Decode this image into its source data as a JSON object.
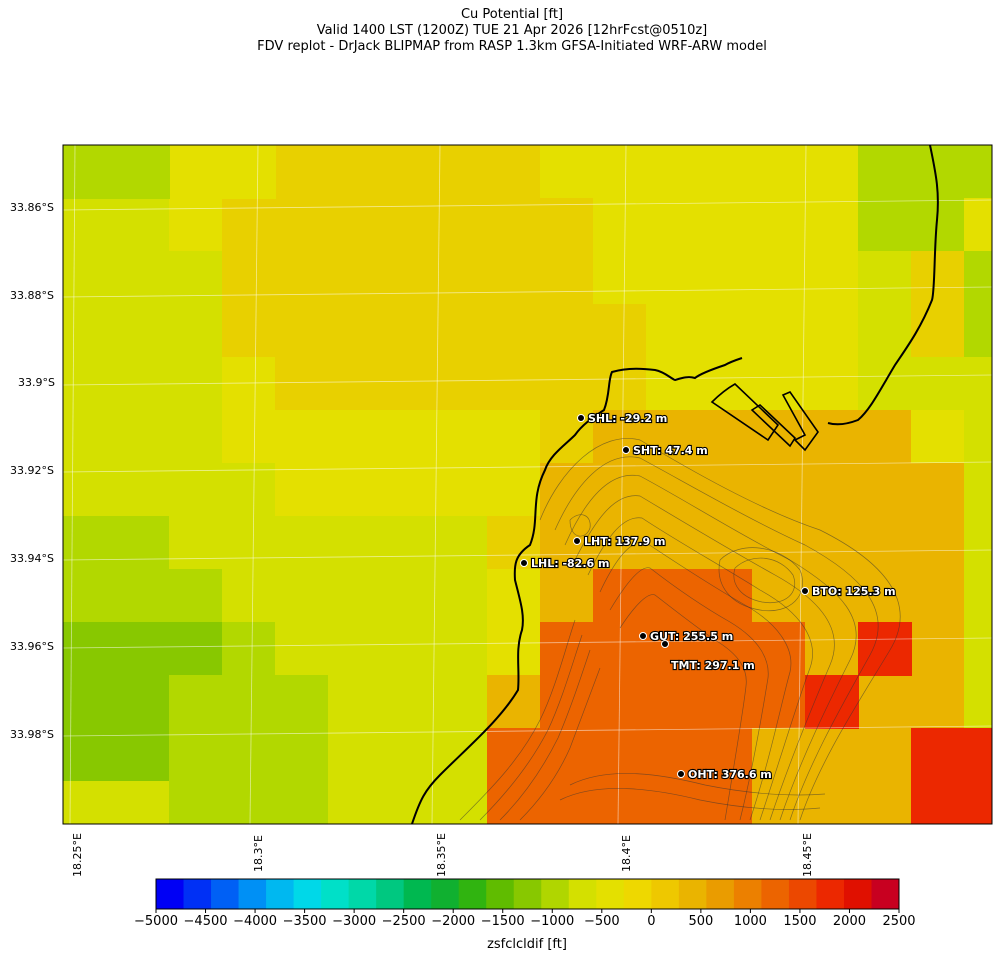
{
  "title": {
    "line1": "Cu Potential [ft]",
    "line2": "Valid 1400 LST (1200Z) TUE 21 Apr 2026 [12hrFcst@0510z]",
    "line3": "FDV replot - DrJack BLIPMAP from RASP 1.3km GFSA-Initiated WRF-ARW model"
  },
  "lat_labels": [
    "33.86°S",
    "33.88°S",
    "33.9°S",
    "33.92°S",
    "33.94°S",
    "33.96°S",
    "33.98°S"
  ],
  "lon_labels": [
    "18.25°E",
    "18.3°E",
    "18.35°E",
    "18.4°E",
    "18.45°E"
  ],
  "stations": [
    {
      "label": "SHL: -29.2 m"
    },
    {
      "label": "SHT: 47.4 m"
    },
    {
      "label": "LHT: 137.9 m"
    },
    {
      "label": "LHL: -82.6 m"
    },
    {
      "label": "BTO: 125.3 m"
    },
    {
      "label": "GUT: 255.5 m"
    },
    {
      "label": "TMT: 297.1 m"
    },
    {
      "label": "OHT: 376.6 m"
    }
  ],
  "colorbar": {
    "label": "zsfclcldif [ft]",
    "ticks": [
      "−5000",
      "−4500",
      "−4000",
      "−3500",
      "−3000",
      "−2500",
      "−2000",
      "−1500",
      "−1000",
      "−500",
      "0",
      "500",
      "1000",
      "1500",
      "2000",
      "2500"
    ],
    "colors": [
      "#0000f5",
      "#0030f5",
      "#0060f5",
      "#0090f5",
      "#00b8f0",
      "#00d8e8",
      "#00e0c8",
      "#00d8a8",
      "#00c880",
      "#00b850",
      "#10b030",
      "#30b410",
      "#60bc00",
      "#88c800",
      "#b0d600",
      "#d4e000",
      "#e4e000",
      "#eed800",
      "#eec800",
      "#eab400",
      "#ea9c00",
      "#ec8000",
      "#ec6400",
      "#ec4800",
      "#ec2800",
      "#e01000",
      "#c80020"
    ]
  },
  "map_grid": {
    "rows": [
      "LLYYLLLLLLLLLLLLLY",
      "LLYYYYYYYYYYYYYYYY",
      "LLYYYYYYYYYYYYYYLL",
      "LLYYYYYYYYYYYYYYYY",
      "YYYYYYYYYYYYYYYYYY",
      "YYYYYYYYYYYYYYYYYY",
      "YYYYYYYYYYYYYYYYYY",
      "YYYYYYYYYYYYYYYYYY",
      "YYYYYYYYYYYYYYYYYY",
      "YYYYYYYYYYYYYYYYYY",
      "YYYYYYYYYYYYYYYYYY",
      "YYYYYYYYYYYYYYYYYY",
      "YYYYYYYYYYYYYYYYYY"
    ]
  }
}
